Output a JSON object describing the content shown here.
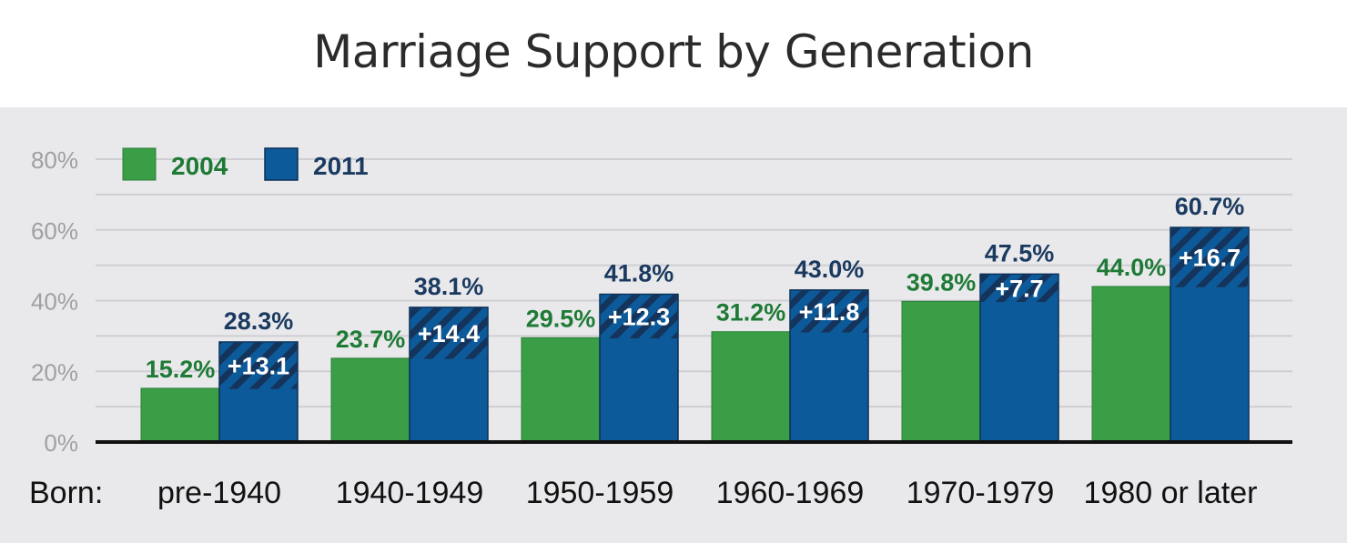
{
  "chart_data": {
    "type": "bar",
    "title": "Marriage Support by Generation",
    "xlabel": "Born:",
    "ylabel": "",
    "ylim": [
      0,
      80
    ],
    "yticks": [
      "0%",
      "20%",
      "40%",
      "60%",
      "80%"
    ],
    "grid": true,
    "legend_placement": "top-left",
    "categories": [
      "pre-1940",
      "1940-1949",
      "1950-1959",
      "1960-1969",
      "1970-1979",
      "1980 or later"
    ],
    "series": [
      {
        "name": "2004",
        "values": [
          15.2,
          23.7,
          29.5,
          31.2,
          39.8,
          44.0
        ],
        "labels": [
          "15.2%",
          "23.7%",
          "29.5%",
          "31.2%",
          "39.8%",
          "44.0%"
        ],
        "color": "#3a9e47",
        "label_color": "#1e7a35"
      },
      {
        "name": "2011",
        "values": [
          28.3,
          38.1,
          41.8,
          43.0,
          47.5,
          60.7
        ],
        "labels": [
          "28.3%",
          "38.1%",
          "41.8%",
          "43.0%",
          "47.5%",
          "60.7%"
        ],
        "color": "#0d5a9a",
        "label_color": "#1b3a5f"
      }
    ],
    "change_labels": [
      "+13.1",
      "+14.4",
      "+12.3",
      "+11.8",
      "+7.7",
      "+16.7"
    ]
  }
}
